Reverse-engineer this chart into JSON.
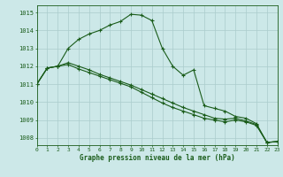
{
  "title": "Graphe pression niveau de la mer (hPa)",
  "background_color": "#cce8e8",
  "grid_color": "#aacccc",
  "line_color": "#1a5c1a",
  "marker_color": "#1a5c1a",
  "xlim": [
    0,
    23
  ],
  "ylim": [
    1007.6,
    1015.4
  ],
  "yticks": [
    1008,
    1009,
    1010,
    1011,
    1012,
    1013,
    1014,
    1015
  ],
  "xticks": [
    0,
    1,
    2,
    3,
    4,
    5,
    6,
    7,
    8,
    9,
    10,
    11,
    12,
    13,
    14,
    15,
    16,
    17,
    18,
    19,
    20,
    21,
    22,
    23
  ],
  "series": [
    [
      1011.0,
      1011.9,
      1012.0,
      1013.0,
      1013.5,
      1013.8,
      1014.0,
      1014.3,
      1014.5,
      1014.9,
      1014.85,
      1014.55,
      1013.0,
      1012.0,
      1011.5,
      1011.8,
      1009.8,
      1009.65,
      1009.5,
      1009.2,
      1009.1,
      1008.8,
      1007.75,
      1007.8
    ],
    [
      1011.0,
      1011.9,
      1012.0,
      1012.2,
      1012.0,
      1011.8,
      1011.55,
      1011.35,
      1011.15,
      1010.95,
      1010.7,
      1010.45,
      1010.2,
      1009.95,
      1009.7,
      1009.5,
      1009.3,
      1009.1,
      1009.05,
      1009.1,
      1008.95,
      1008.75,
      1007.75,
      1007.8
    ],
    [
      1011.0,
      1011.9,
      1012.0,
      1012.1,
      1011.85,
      1011.65,
      1011.45,
      1011.25,
      1011.05,
      1010.85,
      1010.55,
      1010.25,
      1009.95,
      1009.7,
      1009.5,
      1009.3,
      1009.1,
      1009.0,
      1008.9,
      1009.0,
      1008.9,
      1008.7,
      1007.75,
      1007.8
    ]
  ]
}
